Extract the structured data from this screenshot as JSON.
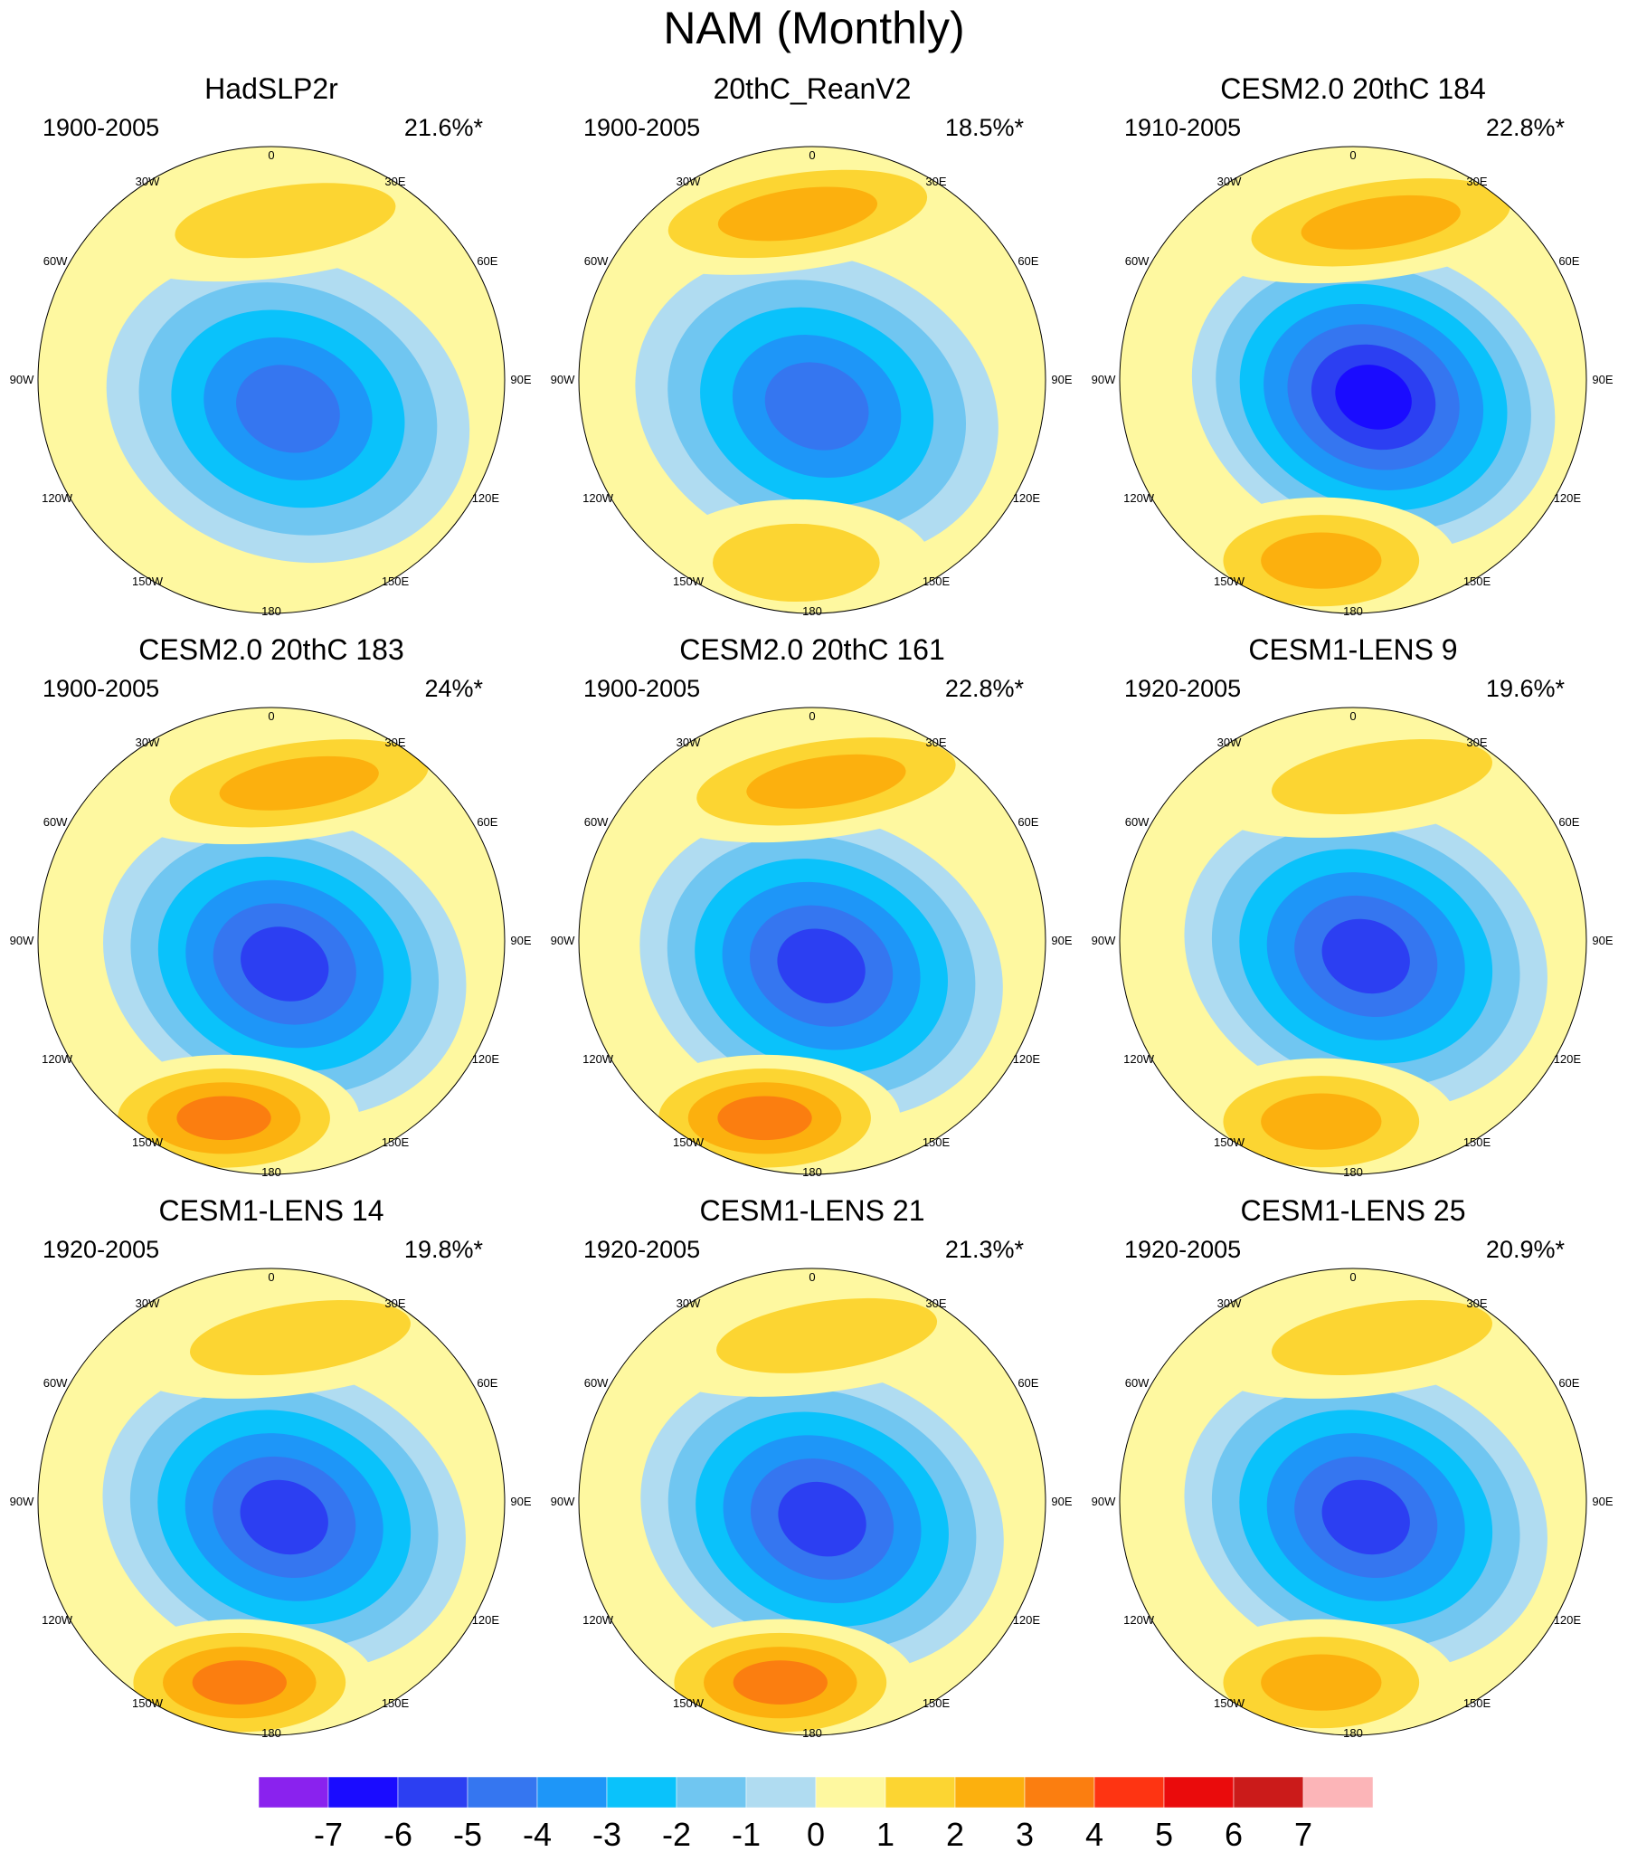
{
  "title": "NAM (Monthly)",
  "longitude_labels": [
    "180",
    "150W",
    "150E",
    "120W",
    "120E",
    "90W",
    "90E",
    "60W",
    "60E",
    "30W",
    "30E",
    "0"
  ],
  "palette": [
    "#8a22ee",
    "#1a0cff",
    "#2c3ff2",
    "#3576f0",
    "#1e96f8",
    "#0ac2fb",
    "#70c6f1",
    "#b0dcf1",
    "#fef8a0",
    "#fcd532",
    "#fcb00e",
    "#fb7e10",
    "#fe3412",
    "#ea0b0c",
    "#cb1b1a",
    "#fcb5b8"
  ],
  "colorbar_ticks": [
    "-7",
    "-6",
    "-5",
    "-4",
    "-3",
    "-2",
    "-1",
    "0",
    "1",
    "2",
    "3",
    "4",
    "5",
    "6",
    "7"
  ],
  "panels": [
    {
      "title": "HadSLP2r",
      "period": "1900-2005",
      "variance": "21.6%*",
      "anomalies": [
        {
          "label": "arctic low",
          "peak": -4.5,
          "lon_deg": 150,
          "colat_deg": 10
        },
        {
          "label": "atlantic high",
          "peak": 1.5,
          "lon_deg": 5,
          "colat_deg": 48
        }
      ]
    },
    {
      "title": "20thC_ReanV2",
      "period": "1900-2005",
      "variance": "18.5%*",
      "anomalies": [
        {
          "label": "arctic low",
          "peak": -4.5,
          "lon_deg": 170,
          "colat_deg": 8
        },
        {
          "label": "atlantic high",
          "peak": 2.5,
          "lon_deg": 355,
          "colat_deg": 50
        },
        {
          "label": "pacific high",
          "peak": 1.5,
          "lon_deg": 185,
          "colat_deg": 55
        }
      ]
    },
    {
      "title": "CESM2.0 20thC 184",
      "period": "1910-2005",
      "variance": "22.8%*",
      "anomalies": [
        {
          "label": "arctic low",
          "peak": -6.5,
          "lon_deg": 130,
          "colat_deg": 8
        },
        {
          "label": "atlantic high",
          "peak": 2.5,
          "lon_deg": 10,
          "colat_deg": 48
        },
        {
          "label": "pacific high",
          "peak": 2.5,
          "lon_deg": 190,
          "colat_deg": 55
        }
      ]
    },
    {
      "title": "CESM2.0 20thC 183",
      "period": "1900-2005",
      "variance": "24%*",
      "anomalies": [
        {
          "label": "arctic low",
          "peak": -5.5,
          "lon_deg": 150,
          "colat_deg": 8
        },
        {
          "label": "atlantic high",
          "peak": 2.5,
          "lon_deg": 10,
          "colat_deg": 48
        },
        {
          "label": "pacific high",
          "peak": 3.5,
          "lon_deg": 195,
          "colat_deg": 55
        }
      ]
    },
    {
      "title": "CESM2.0 20thC 161",
      "period": "1900-2005",
      "variance": "22.8%*",
      "anomalies": [
        {
          "label": "arctic low",
          "peak": -5.5,
          "lon_deg": 160,
          "colat_deg": 8
        },
        {
          "label": "atlantic high",
          "peak": 2.5,
          "lon_deg": 5,
          "colat_deg": 48
        },
        {
          "label": "pacific high",
          "peak": 3.5,
          "lon_deg": 195,
          "colat_deg": 55
        }
      ]
    },
    {
      "title": "CESM1-LENS 9",
      "period": "1920-2005",
      "variance": "19.6%*",
      "anomalies": [
        {
          "label": "arctic low",
          "peak": -5.5,
          "lon_deg": 140,
          "colat_deg": 6
        },
        {
          "label": "atlantic high",
          "peak": 1.5,
          "lon_deg": 10,
          "colat_deg": 50
        },
        {
          "label": "pacific high",
          "peak": 2.5,
          "lon_deg": 190,
          "colat_deg": 55
        }
      ]
    },
    {
      "title": "CESM1-LENS 14",
      "period": "1920-2005",
      "variance": "19.8%*",
      "anomalies": [
        {
          "label": "arctic low",
          "peak": -5.5,
          "lon_deg": 140,
          "colat_deg": 6
        },
        {
          "label": "atlantic high",
          "peak": 1.5,
          "lon_deg": 10,
          "colat_deg": 50
        },
        {
          "label": "pacific high",
          "peak": 3.5,
          "lon_deg": 190,
          "colat_deg": 55
        }
      ]
    },
    {
      "title": "CESM1-LENS 21",
      "period": "1920-2005",
      "variance": "21.3%*",
      "anomalies": [
        {
          "label": "arctic low",
          "peak": -5.5,
          "lon_deg": 150,
          "colat_deg": 6
        },
        {
          "label": "atlantic high",
          "peak": 1.5,
          "lon_deg": 5,
          "colat_deg": 50
        },
        {
          "label": "pacific high",
          "peak": 3.5,
          "lon_deg": 190,
          "colat_deg": 55
        }
      ]
    },
    {
      "title": "CESM1-LENS 25",
      "period": "1920-2005",
      "variance": "20.9%*",
      "anomalies": [
        {
          "label": "arctic low",
          "peak": -5.5,
          "lon_deg": 140,
          "colat_deg": 6
        },
        {
          "label": "atlantic high",
          "peak": 1.5,
          "lon_deg": 10,
          "colat_deg": 50
        },
        {
          "label": "pacific high",
          "peak": 2.5,
          "lon_deg": 190,
          "colat_deg": 55
        }
      ]
    }
  ]
}
